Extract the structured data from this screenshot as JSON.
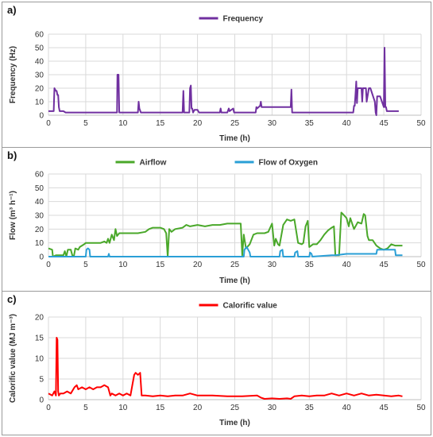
{
  "chart_data": [
    {
      "panel": "a)",
      "type": "line",
      "xlabel": "Time (h)",
      "ylabel": "Frequency (Hz)",
      "xlim": [
        0,
        50
      ],
      "ylim": [
        0,
        60
      ],
      "xticks": [
        0,
        5,
        10,
        15,
        20,
        25,
        30,
        35,
        40,
        45,
        50
      ],
      "yticks": [
        0,
        10,
        20,
        30,
        40,
        50,
        60
      ],
      "grid": true,
      "legend": "top-center",
      "series": [
        {
          "name": "Frequency",
          "color": "#7030a0",
          "x": [
            0,
            0.7,
            0.8,
            0.9,
            1.0,
            1.1,
            1.2,
            1.3,
            1.4,
            1.5,
            2.0,
            2.3,
            9.2,
            9.25,
            9.4,
            9.5,
            9.6,
            12.0,
            12.1,
            12.2,
            12.4,
            12.6,
            18.0,
            18.1,
            18.2,
            18.3,
            18.9,
            19.0,
            19.1,
            19.2,
            19.3,
            19.4,
            19.6,
            20.0,
            20.1,
            20.2,
            20.5,
            23.0,
            23.1,
            23.2,
            24.0,
            24.2,
            24.3,
            24.8,
            24.9,
            27.8,
            27.9,
            28.0,
            28.4,
            28.5,
            28.6,
            32.5,
            32.6,
            32.7,
            40.9,
            41.0,
            41.1,
            41.2,
            41.3,
            41.4,
            41.5,
            42.0,
            42.1,
            42.2,
            42.6,
            42.7,
            43.0,
            43.1,
            43.2,
            43.8,
            43.9,
            44.0,
            44.1,
            44.3,
            44.5,
            45.0,
            45.1,
            45.2,
            45.3,
            45.4,
            45.6,
            46.0,
            47.0
          ],
          "y": [
            3,
            3,
            20,
            19,
            18,
            18,
            15,
            15,
            6,
            3,
            3,
            2,
            2,
            30,
            30,
            2,
            2,
            2,
            10,
            5,
            2,
            2,
            2,
            18,
            2,
            2,
            2,
            20,
            22,
            5,
            5,
            2,
            4,
            4,
            3,
            2,
            2,
            2,
            5,
            2,
            2,
            5,
            3,
            5,
            2,
            2,
            6,
            5,
            7,
            10,
            6,
            6,
            19,
            2,
            2,
            7,
            7,
            16,
            25,
            9,
            20,
            20,
            10,
            20,
            20,
            10,
            20,
            20,
            20,
            10,
            2,
            0,
            14,
            14,
            14,
            6,
            50,
            6,
            6,
            3,
            3,
            3,
            3
          ],
          "note_peak_labels": []
        }
      ]
    },
    {
      "panel": "b)",
      "type": "line",
      "xlabel": "Time (h)",
      "ylabel": "Flow  (m³ h⁻¹)",
      "xlim": [
        0,
        50
      ],
      "ylim": [
        0,
        60
      ],
      "xticks": [
        0,
        5,
        10,
        15,
        20,
        25,
        30,
        35,
        40,
        45,
        50
      ],
      "yticks": [
        0,
        10,
        20,
        30,
        40,
        50,
        60
      ],
      "grid": true,
      "legend": "top-center",
      "series": [
        {
          "name": "Airflow",
          "color": "#4aa82a",
          "x": [
            0,
            0.5,
            0.6,
            1.0,
            2.0,
            2.2,
            2.4,
            2.6,
            3.0,
            3.2,
            3.4,
            3.6,
            4.0,
            4.2,
            4.5,
            4.8,
            5.0,
            5.2,
            5.6,
            6.0,
            6.5,
            7.0,
            7.5,
            7.8,
            8.0,
            8.2,
            8.5,
            8.8,
            9.0,
            9.2,
            9.5,
            10.0,
            10.5,
            11.0,
            12.0,
            13.0,
            13.5,
            14.0,
            15.0,
            15.5,
            15.8,
            16.0,
            16.2,
            16.5,
            17.0,
            18.0,
            18.5,
            19.0,
            20.0,
            21.0,
            22.0,
            23.0,
            24.0,
            24.5,
            25.0,
            25.8,
            26.0,
            26.2,
            26.5,
            27.0,
            27.5,
            28.0,
            28.5,
            29.0,
            29.5,
            30.0,
            30.3,
            30.5,
            30.8,
            31.0,
            31.5,
            32.0,
            32.5,
            33.0,
            33.5,
            34.0,
            34.2,
            34.5,
            34.8,
            35.0,
            35.5,
            36.0,
            36.5,
            37.0,
            37.5,
            38.0,
            38.3,
            38.5,
            39.0,
            39.3,
            39.5,
            40.0,
            40.3,
            40.5,
            41.0,
            41.5,
            42.0,
            42.3,
            42.5,
            42.8,
            43.0,
            43.5,
            44.0,
            44.5,
            45.0,
            45.5,
            46.0,
            46.5,
            47.0,
            47.5
          ],
          "y": [
            6,
            5,
            0,
            1,
            1,
            4,
            0,
            5,
            5,
            1,
            0,
            6,
            5,
            7,
            8,
            9,
            10,
            10,
            10,
            10,
            10,
            10,
            11,
            10,
            13,
            10,
            16,
            12,
            20,
            15,
            17,
            17,
            17,
            17,
            17,
            18,
            20,
            21,
            21,
            20,
            17,
            0,
            20,
            18,
            20,
            21,
            23,
            22,
            23,
            22,
            23,
            23,
            24,
            24,
            24,
            24,
            1,
            16,
            6,
            9,
            16,
            17,
            17,
            17,
            18,
            24,
            8,
            13,
            9,
            8,
            23,
            27,
            26,
            27,
            10,
            9,
            10,
            22,
            26,
            7,
            9,
            9,
            12,
            16,
            19,
            21,
            22,
            1,
            1,
            32,
            31,
            28,
            22,
            28,
            20,
            25,
            24,
            31,
            30,
            15,
            12,
            12,
            8,
            6,
            5,
            6,
            9,
            8,
            8,
            8
          ],
          "note_peak_labels": []
        },
        {
          "name": "Flow of Oxygen",
          "color": "#2a9fd6",
          "x": [
            0,
            5.0,
            5.1,
            5.3,
            5.5,
            5.6,
            8.0,
            8.1,
            8.2,
            26.2,
            26.3,
            26.6,
            27.0,
            27.1,
            31.0,
            31.1,
            31.4,
            31.5,
            33.0,
            33.1,
            33.4,
            33.5,
            35.0,
            35.1,
            35.3,
            35.4,
            38.0,
            38.5,
            40.0,
            44.0,
            44.1,
            46.5,
            46.6,
            47.5
          ],
          "y": [
            0,
            0,
            5,
            6,
            5,
            0,
            0,
            2,
            0,
            0,
            5,
            7,
            3,
            0,
            0,
            4,
            5,
            0,
            0,
            3,
            4,
            0,
            0,
            3,
            2,
            0,
            1,
            1,
            2,
            2,
            5,
            5,
            1,
            1
          ],
          "note_peak_labels": []
        }
      ]
    },
    {
      "panel": "c)",
      "type": "line",
      "xlabel": "Time (h)",
      "ylabel": "Calorific value (MJ m⁻³)",
      "xlim": [
        0,
        50
      ],
      "ylim": [
        0,
        20
      ],
      "xticks": [
        0,
        5,
        10,
        15,
        20,
        25,
        30,
        35,
        40,
        45,
        50
      ],
      "yticks": [
        0,
        5,
        10,
        15,
        20
      ],
      "grid": true,
      "legend": "top-center",
      "series": [
        {
          "name": "Calorific value",
          "color": "#ff0000",
          "x": [
            0,
            0.5,
            0.8,
            1.0,
            1.1,
            1.2,
            1.3,
            1.4,
            1.6,
            2.0,
            2.5,
            3.0,
            3.5,
            3.8,
            4.0,
            4.5,
            5.0,
            5.5,
            6.0,
            6.5,
            7.0,
            7.5,
            8.0,
            8.3,
            8.5,
            9.0,
            9.5,
            10.0,
            10.5,
            11.0,
            11.5,
            11.7,
            12.0,
            12.3,
            12.5,
            13.0,
            14.0,
            15.0,
            16.0,
            17.0,
            18.0,
            19.0,
            20.0,
            22.0,
            24.0,
            26.0,
            28.0,
            28.5,
            29.0,
            30.0,
            31.0,
            32.0,
            32.5,
            33.0,
            34.0,
            35.0,
            36.0,
            37.0,
            38.0,
            39.0,
            40.0,
            41.0,
            42.0,
            43.0,
            44.0,
            45.0,
            46.0,
            47.0,
            47.5
          ],
          "y": [
            1.5,
            1.0,
            2.0,
            1.0,
            15.0,
            14.5,
            2.0,
            1.0,
            1.5,
            1.5,
            2.0,
            1.5,
            3.0,
            3.5,
            2.5,
            3.0,
            2.5,
            3.0,
            2.5,
            3.0,
            3.0,
            3.5,
            3.0,
            1.0,
            1.5,
            1.0,
            1.5,
            1.0,
            1.5,
            1.0,
            6.0,
            6.5,
            6.0,
            6.5,
            1.0,
            1.0,
            0.8,
            1.0,
            0.8,
            1.0,
            1.0,
            1.5,
            1.0,
            1.0,
            0.8,
            0.8,
            1.0,
            0.5,
            0.2,
            0.3,
            0.2,
            0.3,
            0.2,
            0.8,
            1.0,
            0.8,
            1.0,
            1.0,
            1.5,
            1.0,
            1.5,
            1.0,
            1.5,
            1.0,
            1.2,
            1.0,
            0.8,
            1.0,
            0.8
          ],
          "note_peak_labels": []
        }
      ]
    }
  ]
}
